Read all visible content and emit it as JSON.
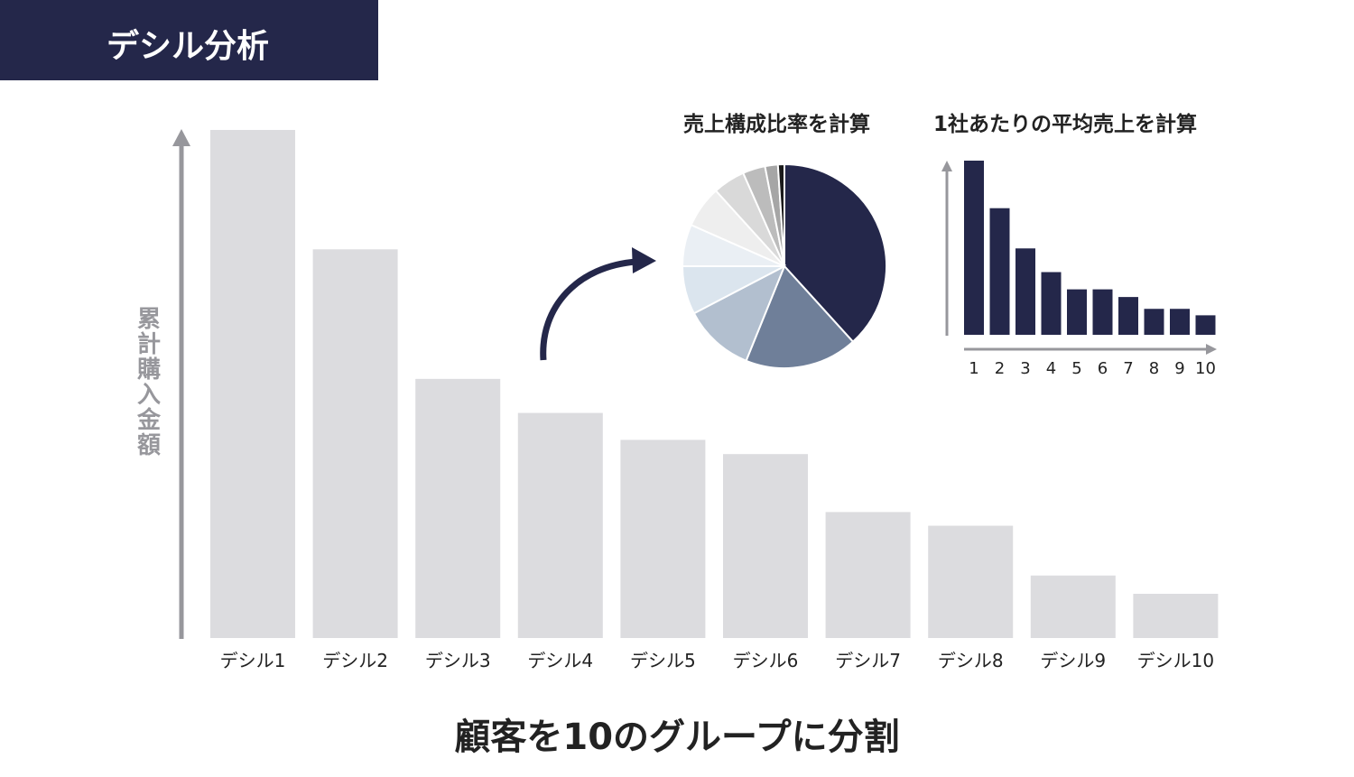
{
  "header": {
    "title": "デシル分析"
  },
  "footer": {
    "caption": "顧客を10のグループに分割"
  },
  "colors": {
    "navy": "#24274a",
    "bar_gray": "#dcdcdf",
    "axis_gray": "#97979c"
  },
  "chart_data": [
    {
      "type": "bar",
      "title": "",
      "ylabel": "累計購入金額",
      "categories": [
        "デシル1",
        "デシル2",
        "デシル3",
        "デシル4",
        "デシル5",
        "デシル6",
        "デシル7",
        "デシル8",
        "デシル9",
        "デシル10"
      ],
      "values": [
        100,
        76.5,
        51,
        44.3,
        39,
        36.2,
        24.8,
        22.1,
        12.3,
        8.7
      ],
      "ylim": [
        0,
        100
      ],
      "grid": false,
      "color": "#dcdcdf"
    },
    {
      "type": "pie",
      "title": "売上構成比率を計算",
      "values": [
        37.5,
        17.5,
        11,
        7.5,
        6.5,
        6.5,
        5,
        3.5,
        2,
        1
      ],
      "colors": [
        "#24274a",
        "#6f7f99",
        "#b2bfcf",
        "#dbe5ee",
        "#eaeff4",
        "#eeeeee",
        "#d9d9d9",
        "#bcbcbc",
        "#a6a6a6",
        "#1a1a1a"
      ]
    },
    {
      "type": "bar",
      "title": "1社あたりの平均売上を計算",
      "categories": [
        "1",
        "2",
        "3",
        "4",
        "5",
        "6",
        "7",
        "8",
        "9",
        "10"
      ],
      "values": [
        100,
        72.7,
        49.6,
        36,
        26.1,
        26.1,
        21.7,
        14.9,
        14.9,
        11.2
      ],
      "ylim": [
        0,
        100
      ],
      "grid": false,
      "color": "#24274a"
    }
  ]
}
